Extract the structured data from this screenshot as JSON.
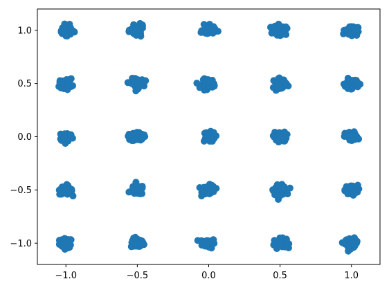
{
  "chart_data": {
    "type": "scatter",
    "title": "",
    "xlabel": "",
    "ylabel": "",
    "xlim": [
      -1.2,
      1.2
    ],
    "ylim": [
      -1.2,
      1.2
    ],
    "x_ticks": [
      -1.0,
      -0.5,
      0.0,
      0.5,
      1.0
    ],
    "y_ticks": [
      -1.0,
      -0.5,
      0.0,
      0.5,
      1.0
    ],
    "x_tick_labels": [
      "−1.0",
      "−0.5",
      "0.0",
      "0.5",
      "1.0"
    ],
    "y_tick_labels": [
      "−1.0",
      "−0.5",
      "0.0",
      "0.5",
      "1.0"
    ],
    "grid": false,
    "legend": "none",
    "marker_color": "#1f77b4",
    "cluster_centers_x": [
      -1.0,
      -0.5,
      0.0,
      0.5,
      1.0
    ],
    "cluster_centers_y": [
      -1.0,
      -0.5,
      0.0,
      0.5,
      1.0
    ],
    "cluster_spread": 0.04,
    "points_per_cluster": 60
  }
}
